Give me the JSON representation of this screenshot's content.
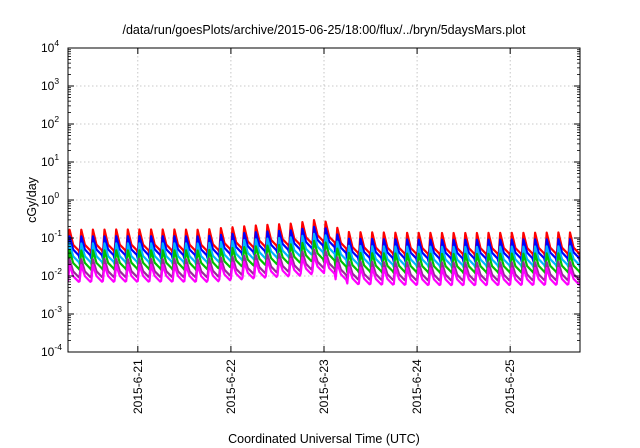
{
  "chart_data": {
    "type": "line",
    "title": "/data/run/goesPlots/archive/2015-06-25/18:00/flux/../bryn/5daysMars.plot",
    "xlabel": "Coordinated Universal Time (UTC)",
    "ylabel": "cGy/day",
    "yscale": "log",
    "ylim": [
      0.0001,
      10000
    ],
    "xlim": [
      "2015-06-20 06:00",
      "2015-06-25 18:00"
    ],
    "grid": true,
    "legend": "none",
    "y_ticks": [
      {
        "base": "10",
        "exp": "-4"
      },
      {
        "base": "10",
        "exp": "-3"
      },
      {
        "base": "10",
        "exp": "-2"
      },
      {
        "base": "10",
        "exp": "-1"
      },
      {
        "base": "10",
        "exp": "0"
      },
      {
        "base": "10",
        "exp": "1"
      },
      {
        "base": "10",
        "exp": "2"
      },
      {
        "base": "10",
        "exp": "3"
      },
      {
        "base": "10",
        "exp": "4"
      }
    ],
    "x_ticks": [
      "2015-6-21",
      "2015-6-22",
      "2015-6-23",
      "2015-6-24",
      "2015-6-25"
    ],
    "pattern": {
      "cycle_hours": 3,
      "peak_point_1": [
        "2015-06-22 16:30",
        0.3
      ],
      "peak_point_2": [
        "2015-06-22 22:30",
        0.32
      ]
    },
    "series": [
      {
        "color": "#ff0000",
        "base": 0.06,
        "peak": 0.3,
        "dip": 0.35
      },
      {
        "color": "#0000ff",
        "base": 0.045,
        "peak": 0.2,
        "dip": 0.35
      },
      {
        "color": "#00b4ff",
        "base": 0.03,
        "peak": 0.13,
        "dip": 0.38
      },
      {
        "color": "#00c000",
        "base": 0.02,
        "peak": 0.085,
        "dip": 0.4
      },
      {
        "color": "#9a2a9a",
        "base": 0.012,
        "peak": 0.05,
        "dip": 0.45
      },
      {
        "color": "#ff00ff",
        "base": 0.009,
        "peak": 0.035,
        "dip": 0.45
      }
    ]
  }
}
